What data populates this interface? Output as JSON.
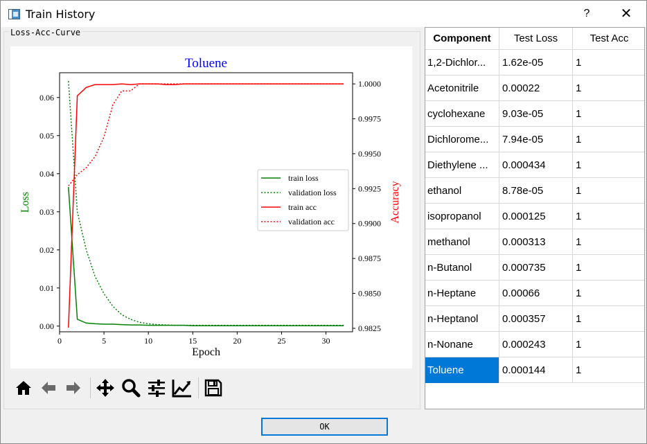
{
  "window": {
    "title": "Train History",
    "help_label": "?",
    "close_label": "✕"
  },
  "group": {
    "title": "Loss-Acc-Curve"
  },
  "chart_data": {
    "type": "line",
    "title": "Toluene",
    "title_color": "#0000ff",
    "xlabel": "Epoch",
    "ylabel": "Loss",
    "ylabel_color": "#008000",
    "y2label": "Accuracy",
    "y2label_color": "#ff0000",
    "xlim": [
      0,
      33
    ],
    "ylim": [
      -0.0015,
      0.0665
    ],
    "y2lim": [
      0.98225,
      1.0008
    ],
    "x_ticks": [
      "0",
      "5",
      "10",
      "15",
      "20",
      "25",
      "30"
    ],
    "y_ticks": [
      "0.00",
      "0.01",
      "0.02",
      "0.03",
      "0.04",
      "0.05",
      "0.06"
    ],
    "y2_ticks": [
      "0.9825",
      "0.9850",
      "0.9875",
      "0.9900",
      "0.9925",
      "0.9950",
      "0.9975",
      "1.0000"
    ],
    "grid": false,
    "legend_position": "center-right",
    "x": [
      1,
      2,
      3,
      4,
      5,
      6,
      7,
      8,
      9,
      10,
      11,
      12,
      13,
      14,
      15,
      16,
      17,
      18,
      19,
      20,
      21,
      22,
      23,
      24,
      25,
      26,
      27,
      28,
      29,
      30,
      31,
      32
    ],
    "series": [
      {
        "name": "train loss",
        "axis": "left",
        "color": "#008000",
        "style": "solid",
        "values": [
          0.0365,
          0.0018,
          0.0008,
          0.0006,
          0.0005,
          0.0005,
          0.0004,
          0.0003,
          0.0003,
          0.0002,
          0.0002,
          0.0002,
          0.0002,
          0.0002,
          0.0001,
          0.0001,
          0.0001,
          0.0001,
          0.0001,
          0.0001,
          0.0001,
          0.0001,
          0.0001,
          0.0001,
          0.0001,
          0.0001,
          0.0001,
          0.0001,
          0.0001,
          0.0001,
          0.0001,
          0.0001
        ]
      },
      {
        "name": "validation loss",
        "axis": "left",
        "color": "#008000",
        "style": "dotted",
        "values": [
          0.0643,
          0.03,
          0.02,
          0.013,
          0.0085,
          0.0052,
          0.003,
          0.0018,
          0.001,
          0.0006,
          0.0004,
          0.0003,
          0.0002,
          0.0002,
          0.0002,
          0.0002,
          0.0002,
          0.0002,
          0.0002,
          0.0002,
          0.0002,
          0.0002,
          0.0002,
          0.0002,
          0.0002,
          0.0002,
          0.0002,
          0.0002,
          0.0002,
          0.0002,
          0.0002,
          0.0002
        ]
      },
      {
        "name": "train acc",
        "axis": "right",
        "color": "#ff0000",
        "style": "solid",
        "values": [
          0.98255,
          0.99915,
          0.99975,
          0.99995,
          0.99995,
          0.99995,
          1.0,
          0.99995,
          1.0,
          1.0,
          1.0,
          0.99995,
          0.99995,
          1.0,
          1.0,
          1.0,
          1.0,
          1.0,
          1.0,
          1.0,
          1.0,
          1.0,
          1.0,
          1.0,
          1.0,
          1.0,
          1.0,
          1.0,
          1.0,
          1.0,
          1.0,
          1.0
        ]
      },
      {
        "name": "validation acc",
        "axis": "right",
        "color": "#ff0000",
        "style": "dotted",
        "values": [
          0.9927,
          0.9935,
          0.994,
          0.9948,
          0.9962,
          0.9985,
          0.9995,
          0.9995,
          1.0,
          1.0,
          1.0,
          1.0,
          1.0,
          1.0,
          1.0,
          1.0,
          1.0,
          1.0,
          1.0,
          1.0,
          1.0,
          1.0,
          1.0,
          1.0,
          1.0,
          1.0,
          1.0,
          1.0,
          1.0,
          1.0,
          1.0,
          1.0
        ]
      }
    ]
  },
  "toolbar": {
    "buttons": [
      "home-icon",
      "back-arrow-icon",
      "forward-arrow-icon",
      "pan-icon",
      "zoom-icon",
      "subplots-icon",
      "edit-curves-icon",
      "save-icon"
    ]
  },
  "table": {
    "headers": [
      "Component",
      "Test Loss",
      "Test Acc"
    ],
    "rows": [
      [
        "1,2-Dichlor...",
        "1.62e-05",
        "1"
      ],
      [
        "Acetonitrile",
        "0.00022",
        "1"
      ],
      [
        "cyclohexane",
        "9.03e-05",
        "1"
      ],
      [
        "Dichlorome...",
        "7.94e-05",
        "1"
      ],
      [
        "Diethylene ...",
        "0.000434",
        "1"
      ],
      [
        "ethanol",
        "8.78e-05",
        "1"
      ],
      [
        "isopropanol",
        "0.000125",
        "1"
      ],
      [
        "methanol",
        "0.000313",
        "1"
      ],
      [
        "n-Butanol",
        "0.000735",
        "1"
      ],
      [
        "n-Heptane",
        "0.00066",
        "1"
      ],
      [
        "n-Heptanol",
        "0.000357",
        "1"
      ],
      [
        "n-Nonane",
        "0.000243",
        "1"
      ],
      [
        "Toluene",
        "0.000144",
        "1"
      ]
    ],
    "selected_row": 12,
    "selected_color": "#0078d7"
  },
  "footer": {
    "ok_label": "OK"
  }
}
